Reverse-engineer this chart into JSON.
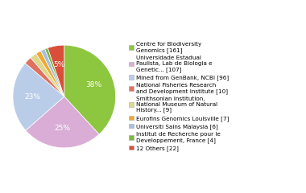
{
  "labels": [
    "Centre for Biodiversity\nGenomics [161]",
    "Universidade Estadual\nPaulista, Lab de Biologia e\nGenetic... [107]",
    "Mined from GenBank, NCBI [96]",
    "National Fisheries Research\nand Development Institute [10]",
    "Smithsonian Institution,\nNational Museum of Natural\nHistory... [9]",
    "Eurofins Genomics Louisville [7]",
    "Universiti Sains Malaysia [6]",
    "Institut de Recherche pour le\nDeveloppement, France [4]",
    "12 Others [22]"
  ],
  "values": [
    161,
    107,
    96,
    10,
    9,
    7,
    6,
    4,
    22
  ],
  "colors": [
    "#8dc63f",
    "#d9add6",
    "#bacde8",
    "#e07060",
    "#ddd98a",
    "#f0a830",
    "#a8bfdd",
    "#7ab840",
    "#d94f3a"
  ],
  "figsize": [
    3.8,
    2.4
  ],
  "dpi": 100
}
